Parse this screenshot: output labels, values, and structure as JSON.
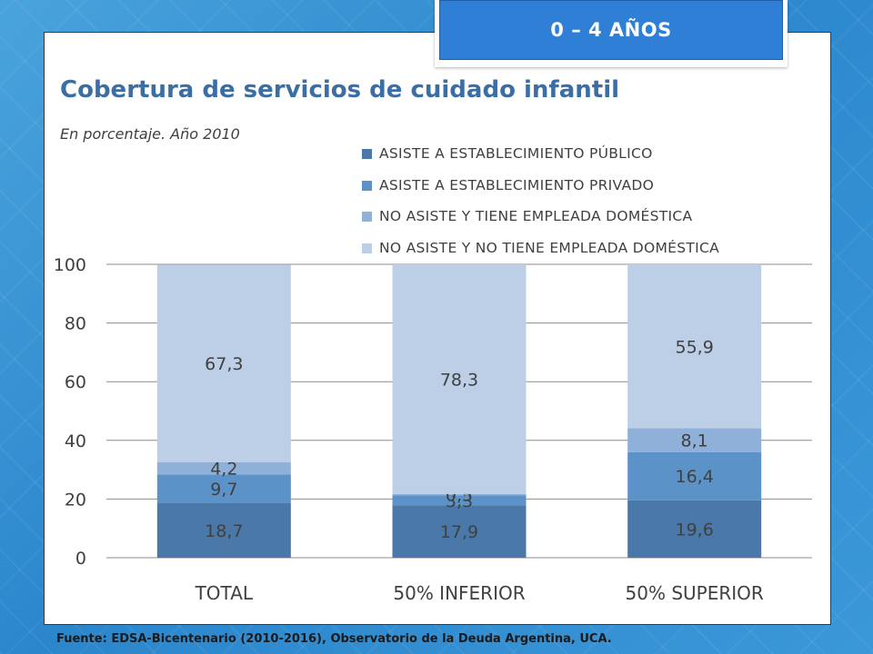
{
  "badge": {
    "label": "0 – 4 AÑOS"
  },
  "header": {
    "title": "Cobertura de servicios de cuidado infantil",
    "subtitle": "En porcentaje. Año 2010"
  },
  "source": "Fuente: EDSA-Bicentenario (2010-2016), Observatorio de la Deuda Argentina, UCA.",
  "colors": {
    "badge_fill": "#2f7fd6",
    "title": "#3a6ea5",
    "series": [
      "#4a78a8",
      "#5b93c9",
      "#8fb0d9",
      "#bccfe7"
    ]
  },
  "chart_data": {
    "type": "bar",
    "stacked": true,
    "categories": [
      "TOTAL",
      "50% INFERIOR",
      "50% SUPERIOR"
    ],
    "series": [
      {
        "name": "ASISTE A ESTABLECIMIENTO PÚBLICO",
        "values": [
          18.7,
          17.9,
          19.6
        ],
        "labels": [
          "18,7",
          "17,9",
          "19,6"
        ]
      },
      {
        "name": "ASISTE A ESTABLECIMIENTO PRIVADO",
        "values": [
          9.7,
          3.3,
          16.4
        ],
        "labels": [
          "9,7",
          "3,3",
          "16,4"
        ]
      },
      {
        "name": "NO ASISTE Y TIENE EMPLEADA DOMÉSTICA",
        "values": [
          4.2,
          0.5,
          8.1
        ],
        "labels": [
          "4,2",
          "0,5",
          "8,1"
        ]
      },
      {
        "name": "NO ASISTE Y NO TIENE EMPLEADA DOMÉSTICA",
        "values": [
          67.3,
          78.3,
          55.9
        ],
        "labels": [
          "67,3",
          "78,3",
          "55,9"
        ]
      }
    ],
    "ylim": [
      0,
      100
    ],
    "yticks": [
      0,
      20,
      40,
      60,
      80,
      100
    ],
    "ytick_labels": [
      "0",
      "20",
      "40",
      "60",
      "80",
      "100"
    ],
    "grid": true,
    "legend_position": "top-right"
  }
}
